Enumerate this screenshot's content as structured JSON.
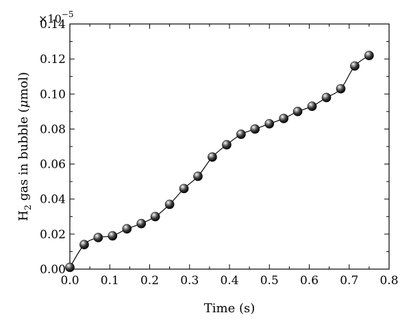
{
  "chart_data": {
    "type": "line",
    "title": "",
    "xlabel": "Time (s)",
    "ylabel_parts": {
      "prefix": "H",
      "subscript": "2",
      "middle": " gas in bubble (",
      "mu": "μ",
      "suffix": "mol)"
    },
    "y_multiplier": {
      "base": "×10",
      "exponent": "−5"
    },
    "xlim": [
      0.0,
      0.8
    ],
    "ylim": [
      0.0,
      0.14
    ],
    "x_ticks": [
      "0.0",
      "0.1",
      "0.2",
      "0.3",
      "0.4",
      "0.5",
      "0.6",
      "0.7",
      "0.8"
    ],
    "y_ticks": [
      "0.00",
      "0.02",
      "0.04",
      "0.06",
      "0.08",
      "0.10",
      "0.12",
      "0.14"
    ],
    "grid": false,
    "legend": "none",
    "marker": "sphere",
    "series": [
      {
        "x": [
          0.0,
          0.036,
          0.071,
          0.107,
          0.143,
          0.179,
          0.214,
          0.25,
          0.286,
          0.321,
          0.357,
          0.393,
          0.429,
          0.464,
          0.5,
          0.536,
          0.571,
          0.607,
          0.643,
          0.679,
          0.714,
          0.75
        ],
        "values": [
          0.001,
          0.014,
          0.018,
          0.019,
          0.023,
          0.026,
          0.03,
          0.037,
          0.046,
          0.053,
          0.064,
          0.071,
          0.077,
          0.08,
          0.083,
          0.086,
          0.09,
          0.093,
          0.098,
          0.103,
          0.116,
          0.122
        ]
      }
    ]
  }
}
